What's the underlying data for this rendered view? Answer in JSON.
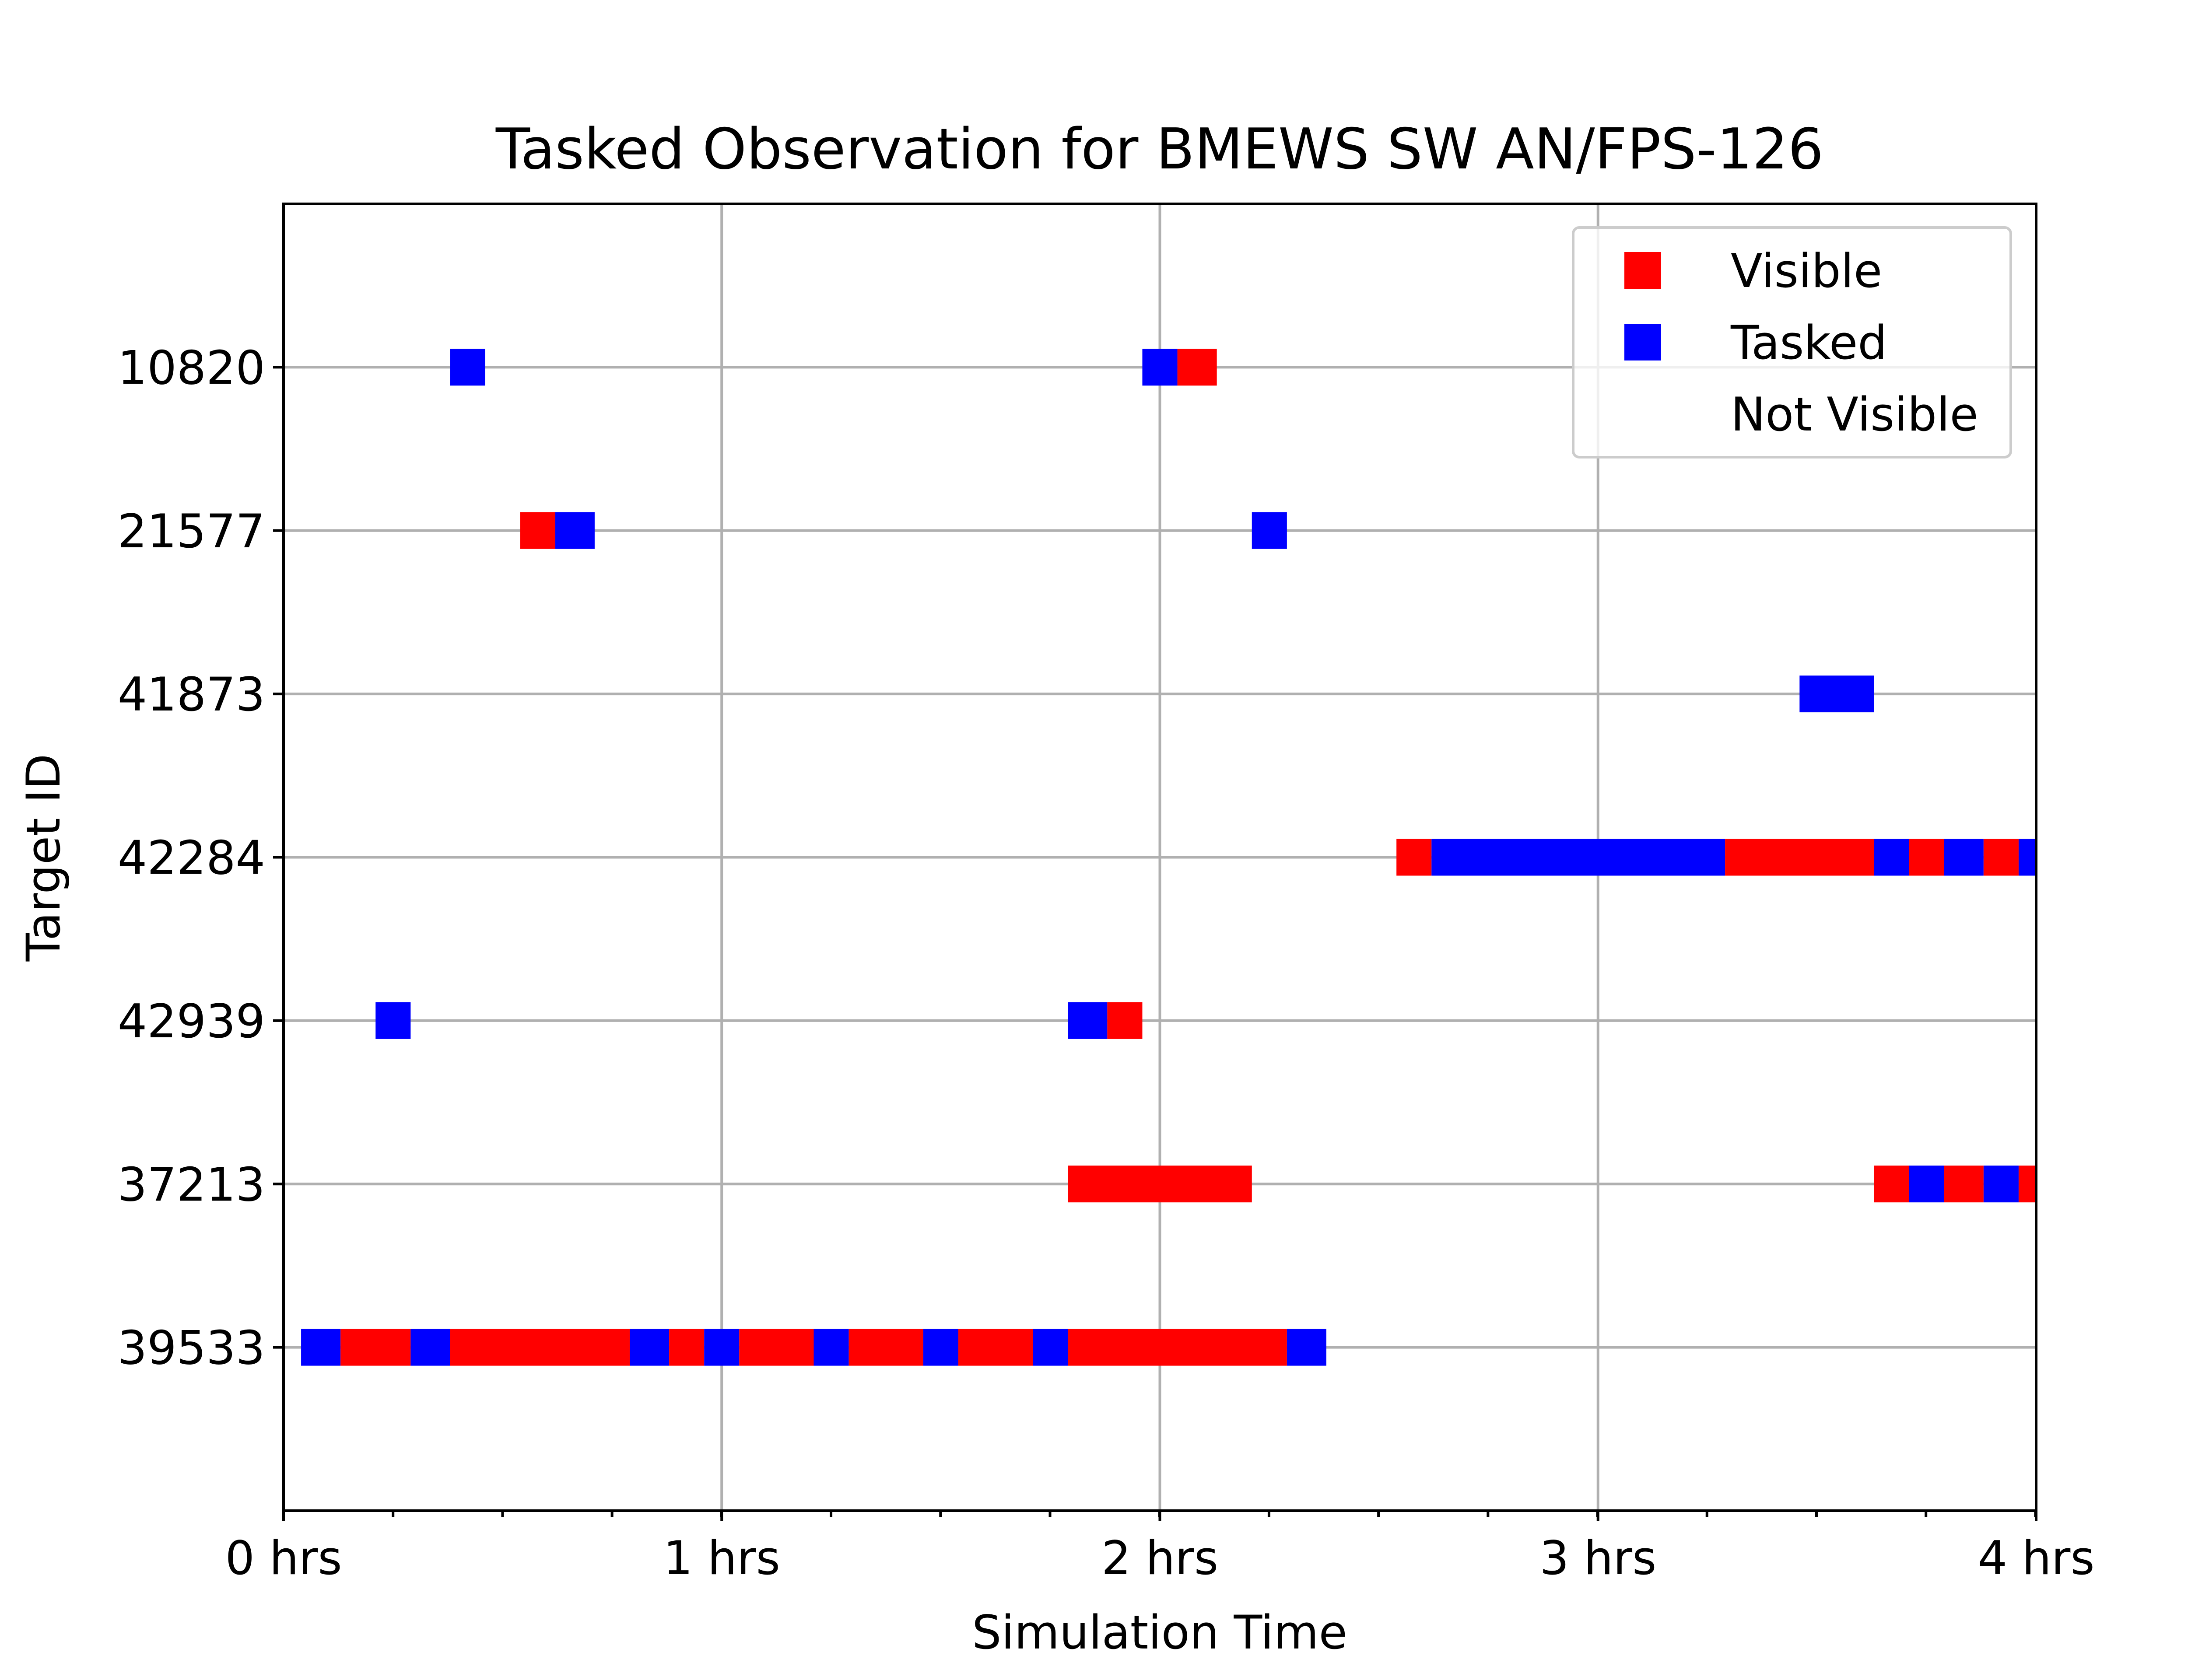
{
  "chart_data": {
    "type": "scatter",
    "title": "Tasked Observation for BMEWS SW AN/FPS-126",
    "xlabel": "Simulation Time",
    "ylabel": "Target ID",
    "xlim": [
      0,
      4
    ],
    "xticks": [
      {
        "value": 0,
        "label": "0 hrs"
      },
      {
        "value": 1,
        "label": "1 hrs"
      },
      {
        "value": 2,
        "label": "2 hrs"
      },
      {
        "value": 3,
        "label": "3 hrs"
      },
      {
        "value": 4,
        "label": "4 hrs"
      }
    ],
    "grid": true,
    "legend_position": "top-right",
    "legend": [
      {
        "label": "Visible",
        "color": "#ff0000"
      },
      {
        "label": "Tasked",
        "color": "#0000ff"
      },
      {
        "label": "Not Visible",
        "color": "#ffffff"
      }
    ],
    "time_step_hrs": 0.0833,
    "targets": [
      {
        "id": "10820",
        "segments": [
          {
            "state": "Tasked",
            "start": 0.38,
            "end": 0.46
          },
          {
            "state": "Tasked",
            "start": 1.96,
            "end": 2.04
          },
          {
            "state": "Visible",
            "start": 2.04,
            "end": 2.13
          }
        ]
      },
      {
        "id": "21577",
        "segments": [
          {
            "state": "Visible",
            "start": 0.54,
            "end": 0.62
          },
          {
            "state": "Tasked",
            "start": 0.62,
            "end": 0.71
          },
          {
            "state": "Tasked",
            "start": 2.21,
            "end": 2.29
          }
        ]
      },
      {
        "id": "41873",
        "segments": [
          {
            "state": "Tasked",
            "start": 3.46,
            "end": 3.63
          }
        ]
      },
      {
        "id": "42284",
        "segments": [
          {
            "state": "Visible",
            "start": 2.54,
            "end": 2.62
          },
          {
            "state": "Tasked",
            "start": 2.62,
            "end": 3.29
          },
          {
            "state": "Visible",
            "start": 3.29,
            "end": 3.63
          },
          {
            "state": "Tasked",
            "start": 3.63,
            "end": 3.71
          },
          {
            "state": "Visible",
            "start": 3.71,
            "end": 3.79
          },
          {
            "state": "Tasked",
            "start": 3.79,
            "end": 3.88
          },
          {
            "state": "Visible",
            "start": 3.88,
            "end": 3.96
          },
          {
            "state": "Tasked",
            "start": 3.96,
            "end": 4.0
          }
        ]
      },
      {
        "id": "42939",
        "segments": [
          {
            "state": "Tasked",
            "start": 0.21,
            "end": 0.29
          },
          {
            "state": "Tasked",
            "start": 1.79,
            "end": 1.88
          },
          {
            "state": "Visible",
            "start": 1.88,
            "end": 1.96
          }
        ]
      },
      {
        "id": "37213",
        "segments": [
          {
            "state": "Visible",
            "start": 1.79,
            "end": 2.21
          },
          {
            "state": "Visible",
            "start": 3.63,
            "end": 3.71
          },
          {
            "state": "Tasked",
            "start": 3.71,
            "end": 3.79
          },
          {
            "state": "Visible",
            "start": 3.79,
            "end": 3.88
          },
          {
            "state": "Tasked",
            "start": 3.88,
            "end": 3.96
          },
          {
            "state": "Visible",
            "start": 3.96,
            "end": 4.0
          }
        ]
      },
      {
        "id": "39533",
        "segments": [
          {
            "state": "Tasked",
            "start": 0.04,
            "end": 0.13
          },
          {
            "state": "Visible",
            "start": 0.13,
            "end": 0.29
          },
          {
            "state": "Tasked",
            "start": 0.29,
            "end": 0.38
          },
          {
            "state": "Visible",
            "start": 0.38,
            "end": 0.79
          },
          {
            "state": "Tasked",
            "start": 0.79,
            "end": 0.88
          },
          {
            "state": "Visible",
            "start": 0.88,
            "end": 0.96
          },
          {
            "state": "Tasked",
            "start": 0.96,
            "end": 1.04
          },
          {
            "state": "Visible",
            "start": 1.04,
            "end": 1.21
          },
          {
            "state": "Tasked",
            "start": 1.21,
            "end": 1.29
          },
          {
            "state": "Visible",
            "start": 1.29,
            "end": 1.46
          },
          {
            "state": "Tasked",
            "start": 1.46,
            "end": 1.54
          },
          {
            "state": "Visible",
            "start": 1.54,
            "end": 1.71
          },
          {
            "state": "Tasked",
            "start": 1.71,
            "end": 1.79
          },
          {
            "state": "Visible",
            "start": 1.79,
            "end": 2.29
          },
          {
            "state": "Tasked",
            "start": 2.29,
            "end": 2.38
          }
        ]
      }
    ]
  }
}
